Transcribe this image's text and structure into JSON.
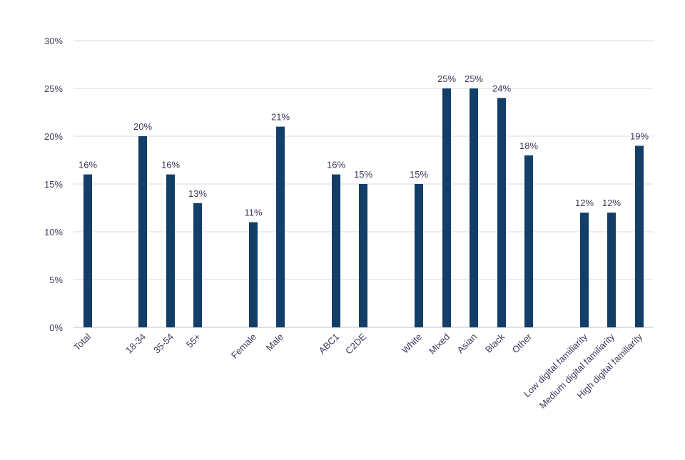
{
  "chart_data": {
    "type": "bar",
    "categories": [
      "Total",
      "18-34",
      "35-54",
      "55+",
      "Female",
      "Male",
      "ABC1",
      "C2DE",
      "White",
      "Mixed",
      "Asian",
      "Black",
      "Other",
      "Low digital familiarity",
      "Medium digital familiarity",
      "High digital familiarity"
    ],
    "category_groups": [
      [
        "Total"
      ],
      [
        "18-34",
        "35-54",
        "55+"
      ],
      [
        "Female",
        "Male"
      ],
      [
        "ABC1",
        "C2DE"
      ],
      [
        "White",
        "Mixed",
        "Asian",
        "Black",
        "Other"
      ],
      [
        "Low digital familiarity",
        "Medium digital familiarity",
        "High digital familiarity"
      ]
    ],
    "values": [
      16,
      20,
      16,
      13,
      11,
      21,
      16,
      15,
      15,
      25,
      25,
      24,
      18,
      12,
      12,
      19
    ],
    "data_labels": [
      "16%",
      "20%",
      "16%",
      "13%",
      "11%",
      "21%",
      "16%",
      "15%",
      "15%",
      "25%",
      "25%",
      "24%",
      "18%",
      "12%",
      "12%",
      "19%"
    ],
    "ylim": [
      0,
      30
    ],
    "yticks": [
      "0%",
      "5%",
      "10%",
      "15%",
      "20%",
      "25%",
      "30%"
    ],
    "grid": true,
    "legend": "none",
    "title": "",
    "xlabel": "",
    "ylabel": "",
    "colors": {
      "bar": "#123e68",
      "text": "#3a3a5c",
      "grid": "#d9d9e3",
      "axis": "#bfbfcf"
    }
  }
}
